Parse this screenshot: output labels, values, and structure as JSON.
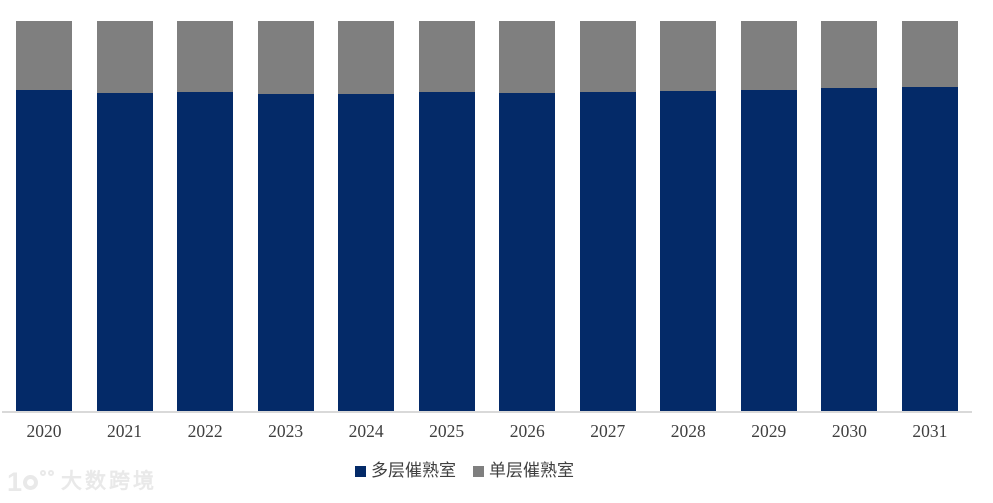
{
  "chart_data": {
    "type": "bar",
    "variant": "stacked-100-percent",
    "orientation": "vertical",
    "categories": [
      "2020",
      "2021",
      "2022",
      "2023",
      "2024",
      "2025",
      "2026",
      "2027",
      "2028",
      "2029",
      "2030",
      "2031"
    ],
    "series": [
      {
        "name": "多层催熟室",
        "color": "#042a68",
        "values": [
          82.2,
          81.6,
          81.9,
          81.4,
          81.3,
          81.7,
          81.6,
          81.7,
          82.1,
          82.2,
          82.8,
          83.1
        ]
      },
      {
        "name": "单层催熟室",
        "color": "#7f7f7f",
        "values": [
          17.8,
          18.4,
          18.1,
          18.6,
          18.7,
          18.3,
          18.4,
          18.3,
          17.9,
          17.8,
          17.2,
          16.9
        ]
      }
    ],
    "value_unit": "percent-share-estimated-from-pixels",
    "ylim": [
      0,
      100
    ],
    "grid": "off",
    "y_axis_visible": false,
    "legend_position": "bottom",
    "colors": {
      "axis_line": "#d9d9d9",
      "tick_label": "#404040",
      "legend_label": "#404040",
      "background": "#ffffff"
    }
  },
  "watermark": {
    "text": "大数跨境",
    "logo": "10100-rings-logo",
    "color": "#e9e9e9"
  }
}
